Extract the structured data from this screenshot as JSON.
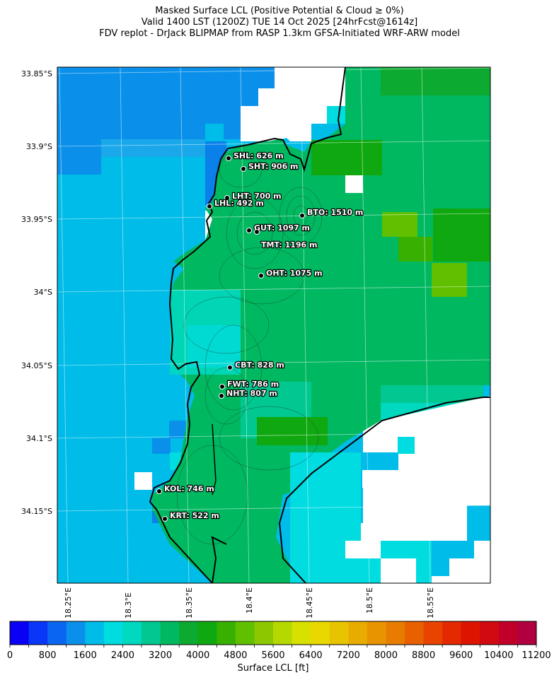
{
  "title": {
    "line1": "Masked Surface LCL (Positive Potential & Cloud ≥ 0%)",
    "line2": "Valid 1400 LST (1200Z) TUE 14 Oct 2025 [24hrFcst@1614z]",
    "line3": "FDV replot - DrJack BLIPMAP from RASP 1.3km GFSA-Initiated WRF-ARW model"
  },
  "lat_ticks": [
    "33.85°S",
    "33.9°S",
    "33.95°S",
    "34°S",
    "34.05°S",
    "34.1°S",
    "34.15°S"
  ],
  "lon_ticks": [
    "18.25°E",
    "18.3°E",
    "18.35°E",
    "18.4°E",
    "18.45°E",
    "18.5°E",
    "18.55°E"
  ],
  "stations": [
    {
      "code": "SHL",
      "label": "SHL: 626 m"
    },
    {
      "code": "SHT",
      "label": "SHT: 906 m"
    },
    {
      "code": "LHT",
      "label": "LHT: 700 m"
    },
    {
      "code": "LHL",
      "label": "LHL: 492 m"
    },
    {
      "code": "BTO",
      "label": "BTO: 1510 m"
    },
    {
      "code": "GUT",
      "label": "GUT: 1097 m"
    },
    {
      "code": "TMT",
      "label": "TMT: 1196 m"
    },
    {
      "code": "OHT",
      "label": "OHT: 1075 m"
    },
    {
      "code": "CBT",
      "label": "CBT: 828 m"
    },
    {
      "code": "FWT",
      "label": "FWT: 786 m"
    },
    {
      "code": "NHT",
      "label": "NHT: 807 m"
    },
    {
      "code": "KOL",
      "label": "KOL: 746 m"
    },
    {
      "code": "KRT",
      "label": "KRT: 522 m"
    }
  ],
  "colorbar": {
    "label": "Surface LCL [ft]",
    "min": 0,
    "max": 11200,
    "step": 400,
    "tick_labels": [
      "0",
      "800",
      "1600",
      "2400",
      "3200",
      "4000",
      "4800",
      "5600",
      "6400",
      "7200",
      "8000",
      "8800",
      "9600",
      "10400",
      "11200"
    ],
    "colors": [
      "#0a00f5",
      "#0a36f7",
      "#0a66f0",
      "#0a90ea",
      "#00bce8",
      "#00dce0",
      "#00d8c0",
      "#00c890",
      "#00b860",
      "#0caa30",
      "#10a810",
      "#38b000",
      "#60c000",
      "#8cc800",
      "#b4d800",
      "#d8e000",
      "#e8d800",
      "#e8c400",
      "#e8ac00",
      "#e89400",
      "#e87c00",
      "#e86000",
      "#e84400",
      "#e42800",
      "#dc1400",
      "#d00a10",
      "#c00028",
      "#b00040"
    ]
  }
}
